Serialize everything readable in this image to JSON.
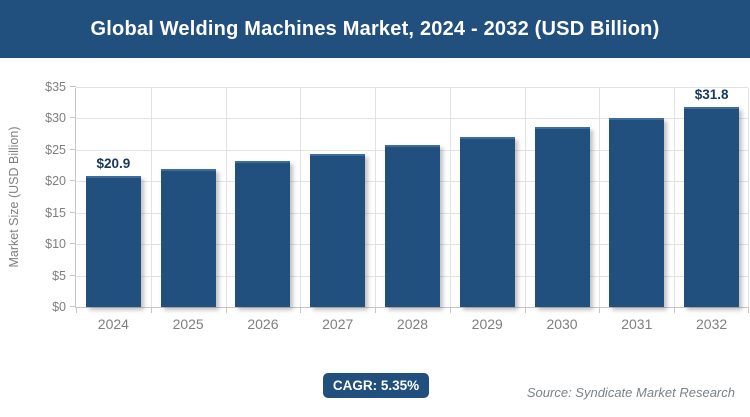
{
  "banner": {
    "title": "Global Welding Machines Market, 2024 - 2032 (USD Billion)"
  },
  "chart_data": {
    "type": "bar",
    "title": "Global Welding Machines Market, 2024 - 2032 (USD Billion)",
    "categories": [
      "2024",
      "2025",
      "2026",
      "2027",
      "2028",
      "2029",
      "2030",
      "2031",
      "2032"
    ],
    "values": [
      20.9,
      22.0,
      23.2,
      24.4,
      25.7,
      27.1,
      28.6,
      30.1,
      31.8
    ],
    "data_labels": [
      "$20.9",
      null,
      null,
      null,
      null,
      null,
      null,
      null,
      "$31.8"
    ],
    "xlabel": "",
    "ylabel": "Market Size (USD Billion)",
    "ylim": [
      0,
      35
    ],
    "ytick_step": 5,
    "ytick_labels": [
      "$0",
      "$5",
      "$10",
      "$15",
      "$20",
      "$25",
      "$30",
      "$35"
    ],
    "grid": true,
    "legend_position": "none"
  },
  "footer": {
    "cagr_badge": "CAGR: 5.35%",
    "source": "Source: Syndicate Market Research"
  },
  "colors": {
    "banner_bg": "#21507E",
    "banner_text": "#FFFFFF",
    "bar_fill": "#21507E",
    "bar_top_edge": "#3E6D9C",
    "data_label_text": "#17375C",
    "axis_text": "#7F7F7F",
    "gridline": "#E2E2E2",
    "axis_line": "#C6C6C6",
    "badge_bg": "#21507E",
    "badge_text": "#FFFFFF",
    "source_text": "#7A8288"
  }
}
